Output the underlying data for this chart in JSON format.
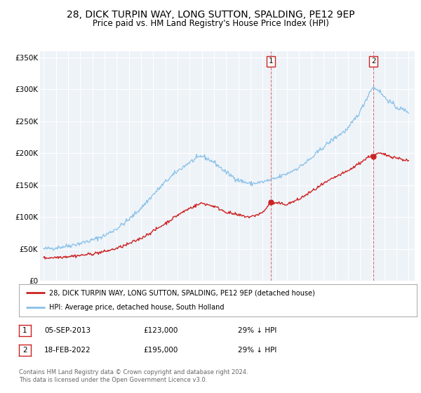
{
  "title": "28, DICK TURPIN WAY, LONG SUTTON, SPALDING, PE12 9EP",
  "subtitle": "Price paid vs. HM Land Registry's House Price Index (HPI)",
  "title_fontsize": 10,
  "subtitle_fontsize": 8.5,
  "ylabel_ticks": [
    "£0",
    "£50K",
    "£100K",
    "£150K",
    "£200K",
    "£250K",
    "£300K",
    "£350K"
  ],
  "ytick_values": [
    0,
    50000,
    100000,
    150000,
    200000,
    250000,
    300000,
    350000
  ],
  "ylim": [
    0,
    360000
  ],
  "xlim_start": 1994.7,
  "xlim_end": 2025.5,
  "hpi_color": "#88c0e8",
  "price_color": "#cc2222",
  "marker1_date": 2013.67,
  "marker1_price": 123000,
  "marker2_date": 2022.12,
  "marker2_price": 195000,
  "vline1_x": 2013.67,
  "vline2_x": 2022.12,
  "legend_label_red": "28, DICK TURPIN WAY, LONG SUTTON, SPALDING, PE12 9EP (detached house)",
  "legend_label_blue": "HPI: Average price, detached house, South Holland",
  "table_row1": [
    "1",
    "05-SEP-2013",
    "£123,000",
    "29% ↓ HPI"
  ],
  "table_row2": [
    "2",
    "18-FEB-2022",
    "£195,000",
    "29% ↓ HPI"
  ],
  "footer_text": "Contains HM Land Registry data © Crown copyright and database right 2024.\nThis data is licensed under the Open Government Licence v3.0.",
  "plot_bg_color": "#eef3f8",
  "grid_color": "#ffffff"
}
